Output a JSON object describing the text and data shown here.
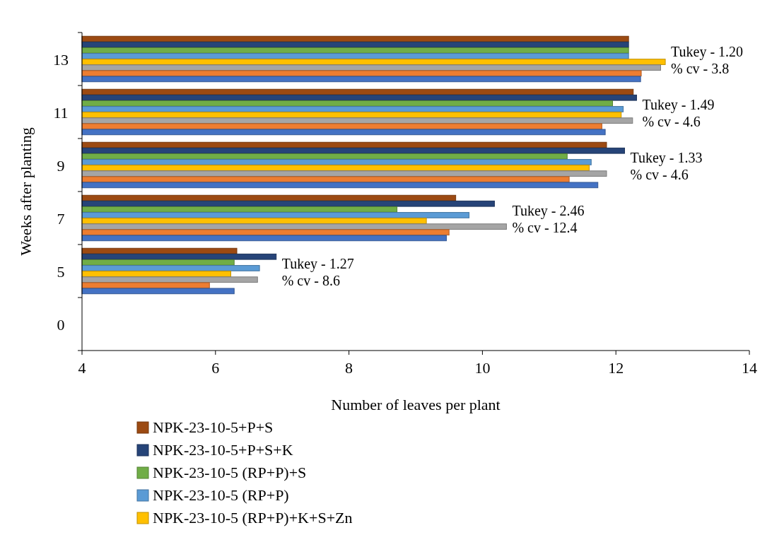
{
  "chart_data": {
    "type": "bar",
    "orientation": "horizontal",
    "xlabel": "Number of leaves per plant",
    "ylabel": "Weeks after planting",
    "categories": [
      "13",
      "11",
      "9",
      "7",
      "5",
      "0"
    ],
    "xlim": [
      4,
      14
    ],
    "xticks": [
      4,
      6,
      8,
      10,
      12,
      14
    ],
    "grid": false,
    "legend": "bottom",
    "series": [
      {
        "name": "NPK-23-10-5+P+S",
        "color": "#9c4a12",
        "values": [
          12.19,
          12.26,
          11.86,
          9.6,
          6.32,
          null
        ]
      },
      {
        "name": "NPK-23-10-5+P+S+K",
        "color": "#264478",
        "values": [
          12.19,
          12.31,
          12.13,
          10.18,
          6.91,
          null
        ]
      },
      {
        "name": "NPK-23-10-5 (RP+P)+S",
        "color": "#70ad47",
        "values": [
          12.19,
          11.95,
          11.27,
          8.72,
          6.28,
          null
        ]
      },
      {
        "name": "NPK-23-10-5 (RP+P)",
        "color": "#5b9bd5",
        "values": [
          12.19,
          12.11,
          11.63,
          9.8,
          6.66,
          null
        ]
      },
      {
        "name": "NPK-23-10-5 (RP+P)+K+S+Zn",
        "color": "#ffc000",
        "values": [
          12.74,
          12.08,
          11.6,
          9.16,
          6.23,
          null
        ]
      },
      {
        "color": "#a5a5a5",
        "values": [
          12.67,
          12.25,
          11.86,
          10.36,
          6.63,
          null
        ]
      },
      {
        "color": "#ed7d31",
        "values": [
          12.38,
          11.79,
          11.3,
          9.5,
          5.91,
          null
        ]
      },
      {
        "color": "#4472c4",
        "values": [
          12.37,
          11.84,
          11.73,
          9.46,
          6.28,
          null
        ]
      }
    ],
    "annotations": [
      "Tukey - 1.20",
      "% cv - 3.8",
      "Tukey - 1.49",
      "% cv - 4.6",
      "Tukey - 1.33",
      "% cv - 4.6",
      "Tukey - 2.46",
      "% cv - 12.4",
      "Tukey - 1.27",
      "% cv - 8.6"
    ]
  }
}
